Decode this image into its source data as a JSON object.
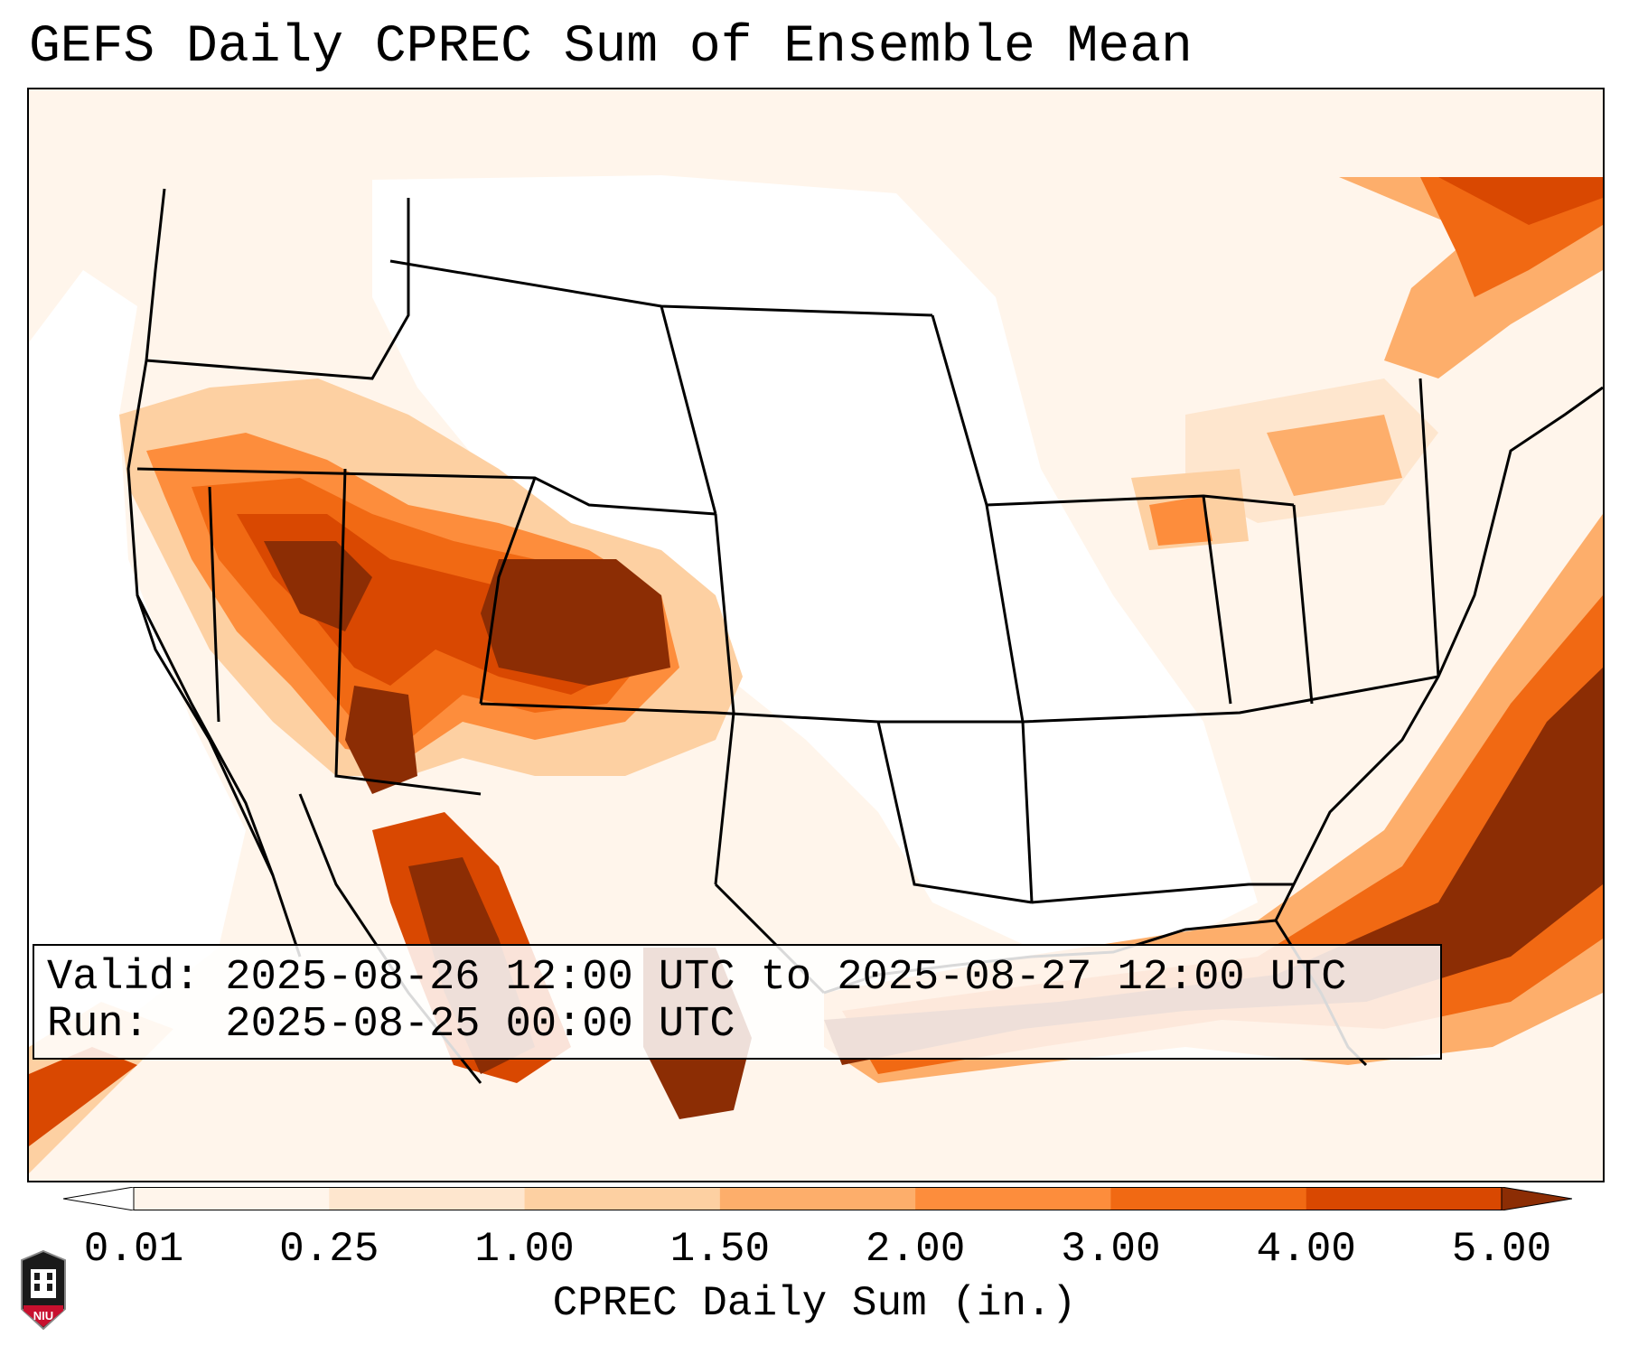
{
  "title": "GEFS Daily CPREC Sum of Ensemble Mean",
  "info": {
    "valid_line": "Valid: 2025-08-26 12:00 UTC to 2025-08-27 12:00 UTC",
    "run_line": "Run:   2025-08-25 00:00 UTC"
  },
  "colorbar": {
    "label": "CPREC Daily Sum (in.)",
    "ticks": [
      "0.01",
      "0.25",
      "1.00",
      "1.50",
      "2.00",
      "3.00",
      "4.00",
      "5.00"
    ],
    "colors": [
      "#fff5eb",
      "#fee6ce",
      "#fdd0a2",
      "#fdae6b",
      "#fd8d3c",
      "#f16913",
      "#d94801",
      "#8c2d04"
    ],
    "under_color": "#ffffff",
    "over_color": "#7f2704",
    "extend": "both"
  },
  "logo": {
    "text": "NIU"
  },
  "map": {
    "region": "Contiguous United States, northern Mexico, southern Canada",
    "projection": "Lambert conformal",
    "features": [
      "coastlines",
      "state borders",
      "country borders"
    ]
  }
}
